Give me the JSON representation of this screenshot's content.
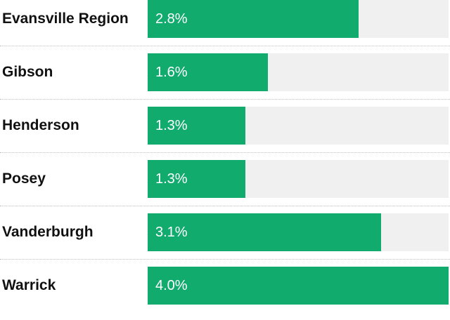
{
  "colors": {
    "bar": "#12ab6e",
    "track": "#f0f0f0",
    "label": "#111111",
    "value_text": "#ffffff"
  },
  "chart_data": {
    "type": "bar",
    "orientation": "horizontal",
    "categories": [
      "Evansville Region",
      "Gibson",
      "Henderson",
      "Posey",
      "Vanderburgh",
      "Warrick"
    ],
    "values": [
      2.8,
      1.6,
      1.3,
      1.3,
      3.1,
      4.0
    ],
    "value_labels": [
      "2.8%",
      "1.6%",
      "1.3%",
      "1.3%",
      "3.1%",
      "4.0%"
    ],
    "xlim": [
      0,
      4.0
    ],
    "title": "",
    "xlabel": "",
    "ylabel": "",
    "grid": false,
    "legend": "none"
  }
}
